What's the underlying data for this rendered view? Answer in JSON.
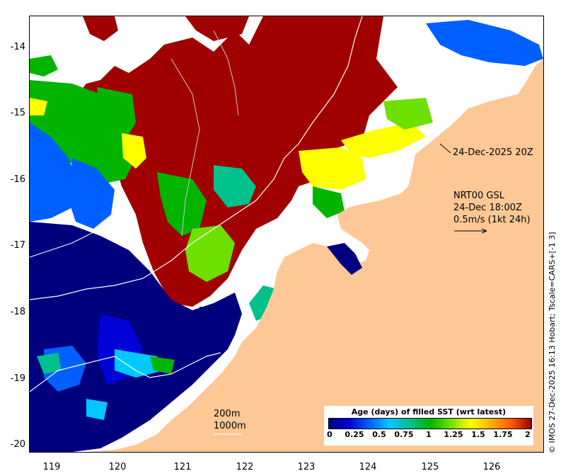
{
  "map": {
    "lat_ticks": [
      "-14",
      "-15",
      "-16",
      "-17",
      "-18",
      "-19",
      "-20"
    ],
    "lon_ticks": [
      "119",
      "120",
      "121",
      "122",
      "123",
      "124",
      "125",
      "126"
    ],
    "lat_range": [
      -20.1,
      -13.5
    ],
    "lon_range": [
      118.6,
      126.7
    ]
  },
  "annotations": {
    "date_label": "24-Dec-2025 20Z",
    "product_line1": "NRT00 GSL",
    "product_line2": "24-Dec 18:00Z",
    "product_line3": "0.5m/s (1kt 24h)",
    "depth_200": "200m",
    "depth_1000": "1000m"
  },
  "legend": {
    "title": "Age (days) of filled SST (wrt latest)",
    "ticks": [
      "0",
      "0.25",
      "0.5",
      "0.75",
      "1",
      "1.25",
      "1.5",
      "1.75",
      "2"
    ],
    "colors": [
      "#00007f",
      "#0000d8",
      "#0060ff",
      "#00c8ff",
      "#00c08c",
      "#00b400",
      "#6ee000",
      "#ffff00",
      "#ffb000",
      "#ff5a00",
      "#a00000"
    ]
  },
  "credit": "© IMOS 27-Dec-2025 16:13 Hobart; Tscale=CARS+[-1 3]",
  "colors": {
    "land": "#fdc896",
    "ocean_fresh": "#00007f",
    "no_data": "#ffffff",
    "old": "#a00000"
  }
}
